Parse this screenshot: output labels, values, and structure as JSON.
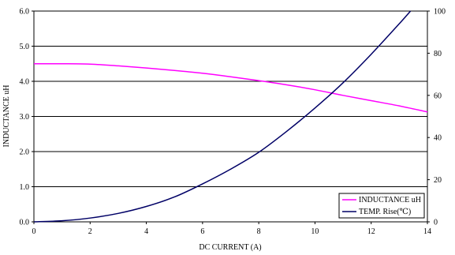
{
  "chart_data": {
    "type": "line",
    "xlabel": "DC CURRENT (A)",
    "ylabel": "INDUCTANCE uH",
    "xlim": [
      0,
      14
    ],
    "ylim": [
      0,
      6
    ],
    "y2lim": [
      0,
      100
    ],
    "x_ticks": [
      "0",
      "2",
      "4",
      "6",
      "8",
      "10",
      "12",
      "14"
    ],
    "y_ticks": [
      "0.0",
      "1.0",
      "2.0",
      "3.0",
      "4.0",
      "5.0",
      "6.0"
    ],
    "y2_ticks": [
      "0",
      "20",
      "40",
      "60",
      "80",
      "100"
    ],
    "grid": "horizontal",
    "legend_position": "bottom-right",
    "series": [
      {
        "name": "INDUCTANCE uH",
        "axis": "left",
        "color": "#ff00ff",
        "x": [
          0,
          1,
          2,
          3,
          4,
          5,
          6,
          7,
          8,
          9,
          10,
          11,
          12,
          13,
          14
        ],
        "y": [
          4.5,
          4.5,
          4.49,
          4.44,
          4.38,
          4.31,
          4.23,
          4.13,
          4.02,
          3.9,
          3.76,
          3.6,
          3.45,
          3.3,
          3.13
        ]
      },
      {
        "name": "TEMP. Rise(℃)",
        "axis": "right",
        "color": "#000066",
        "x": [
          0,
          1,
          2,
          3,
          4,
          5,
          6,
          7,
          8,
          9,
          10,
          11,
          12,
          13,
          13.4
        ],
        "y": [
          0,
          0.5,
          1.8,
          4.0,
          7.3,
          11.8,
          18.0,
          25.0,
          33.0,
          43.0,
          54.0,
          66.0,
          79.5,
          94.0,
          100.0
        ]
      }
    ]
  }
}
